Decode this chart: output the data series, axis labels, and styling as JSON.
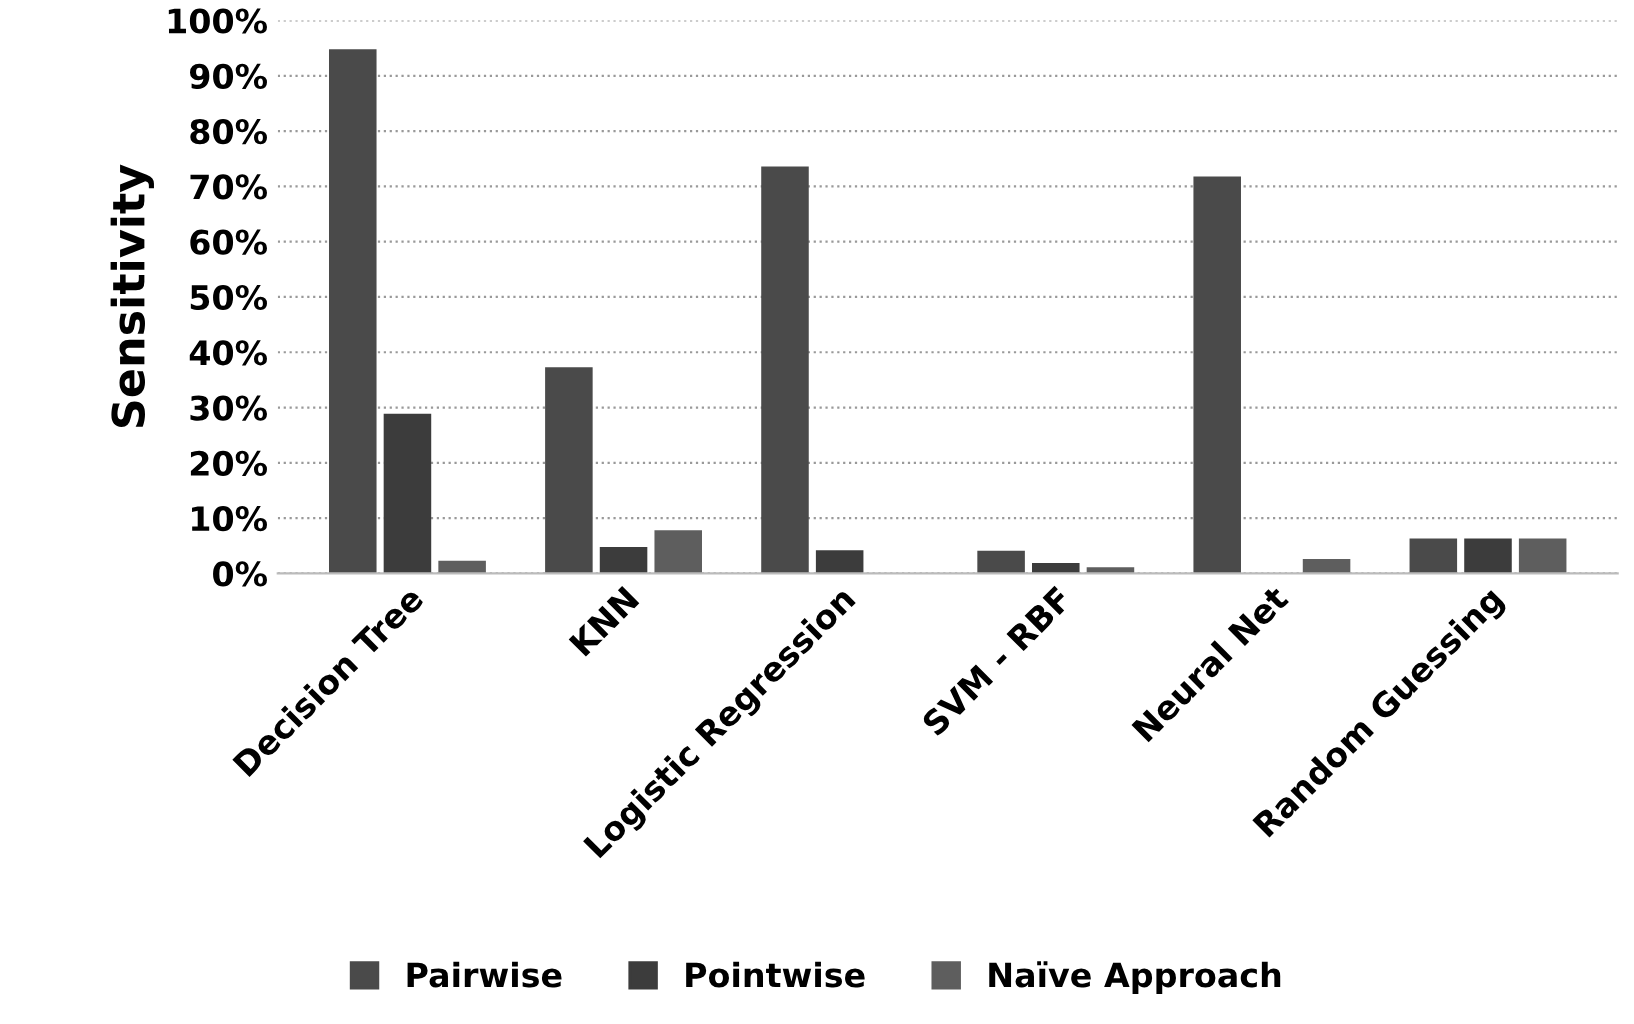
{
  "chart_data": {
    "type": "bar",
    "ylabel": "Sensitivity",
    "categories": [
      "Decision Tree",
      "KNN",
      "Logistic Regression",
      "SVM - RBF",
      "Neural Net",
      "Random Guessing"
    ],
    "series": [
      {
        "name": "Pairwise",
        "color": "#4a4a4a",
        "values": [
          94.8,
          37.3,
          73.6,
          4.1,
          71.8,
          6.3
        ]
      },
      {
        "name": "Pointwise",
        "color": "#3c3c3c",
        "values": [
          28.9,
          4.8,
          4.2,
          1.9,
          0,
          6.3
        ]
      },
      {
        "name": "Naïve Approach",
        "color": "#5e5e5e",
        "values": [
          2.3,
          7.8,
          0,
          1.1,
          2.6,
          6.3
        ]
      }
    ],
    "ylim": [
      0,
      100
    ],
    "yticks": [
      {
        "value": 0,
        "label": "0%"
      },
      {
        "value": 10,
        "label": "10%"
      },
      {
        "value": 20,
        "label": "20%"
      },
      {
        "value": 30,
        "label": "30%"
      },
      {
        "value": 40,
        "label": "40%"
      },
      {
        "value": 50,
        "label": "50%"
      },
      {
        "value": 60,
        "label": "60%"
      },
      {
        "value": 70,
        "label": "70%"
      },
      {
        "value": 80,
        "label": "80%"
      },
      {
        "value": 90,
        "label": "90%"
      },
      {
        "value": 100,
        "label": "100%"
      }
    ],
    "grid": "y",
    "legend": "bottom"
  }
}
